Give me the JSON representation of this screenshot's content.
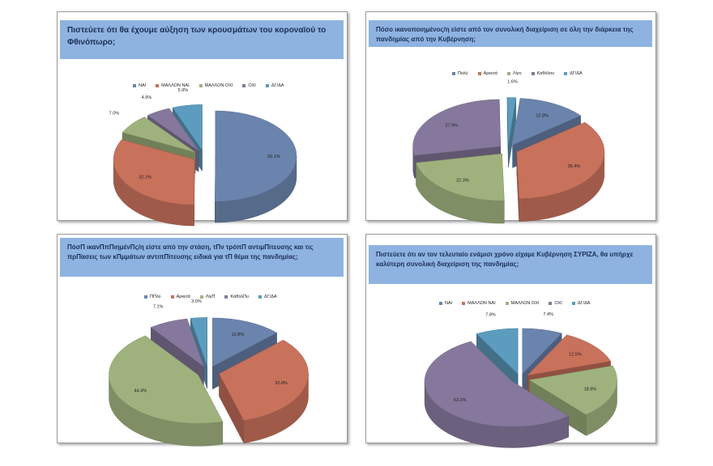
{
  "chart_data": [
    {
      "type": "pie",
      "title": "Πιστεύετε ότι θα έχουμε αύξηση των κρουσμάτων του κοροναϊού το Φθινόπωρο;",
      "categories": [
        "ΝΑΙ",
        "ΜΑΛΛΟΝ ΝΑΙ",
        "ΜΑΛΛΟΝ ΟΧΙ",
        "ΟΧΙ",
        "ΔΓ/ΔΑ"
      ],
      "values": [
        50.1,
        32.1,
        7.0,
        4.9,
        5.9
      ],
      "labels": [
        "50.1%",
        "32.1%",
        "7.0%",
        "4.9%",
        "5.9%"
      ],
      "legend": "top"
    },
    {
      "type": "pie",
      "title": "Πόσο ικανοποιημένος/η είστε από τον συνολική διαχείριση σε όλη την διάρκεια της πανδημίας από την Κυβέρνηση;",
      "categories": [
        "Πολύ",
        "Αρκετά",
        "Λίγο",
        "Καθόλου",
        "ΔΓ/ΔΑ"
      ],
      "values": [
        12.8,
        35.4,
        22.3,
        27.9,
        1.6
      ],
      "labels": [
        "12.8%",
        "35.4%",
        "22.3%",
        "27.9%",
        "1.6%"
      ],
      "legend": "top"
    },
    {
      "type": "pie",
      "title": "ΠόσΠ ικανΠπΠιημένΠς/η είστε από την στάση, τΠν τρόπΠ αντιμΠ̈ιτευσης και τις πρΠ̈ασεις των κΠμμάτων αντιπΠ̈ιτευσης ειδικά για τΠ θέμα της πανδημίας;",
      "categories": [
        "ΠΠλύ",
        "Αρκετά",
        "ΛίγΠ",
        "ΚαθόλΠυ",
        "ΔΓ/ΔΑ"
      ],
      "values": [
        12.8,
        32.8,
        44.4,
        7.1,
        3.0
      ],
      "labels": [
        "12.8%",
        "32.8%",
        "44.4%",
        "7.1%",
        "3.0%"
      ],
      "legend": "top"
    },
    {
      "type": "pie",
      "title": "Πιστεύετε ότι αν τον τελευταίο ενάμισι χρόνο είχαμε Κυβέρνηση ΣΥΡΙΖΑ, θα υπήρχε καλύτερη συνολική διαχείριση της πανδημίας;",
      "categories": [
        "ΝΑΙ",
        "ΜΑΛΛΟΝ ΝΑΙ",
        "ΜΑΛΛΟΝ ΟΧΙ",
        "ΟΧΙ",
        "ΔΓ/ΔΑ"
      ],
      "values": [
        7.4,
        12.5,
        18.9,
        53.3,
        7.8
      ],
      "labels": [
        "7.4%",
        "12.5%",
        "18.9%",
        "53.3%",
        "7.8%"
      ],
      "legend": "top"
    }
  ],
  "colors": [
    "#6b84ad",
    "#c8715b",
    "#9fb27d",
    "#86789c",
    "#5c9cbe"
  ]
}
